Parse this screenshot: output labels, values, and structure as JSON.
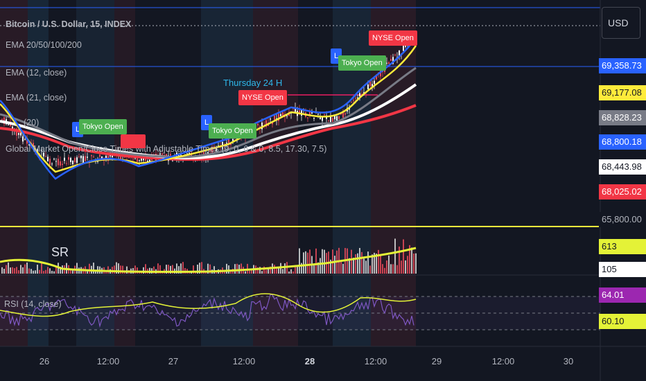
{
  "chart": {
    "symbol_title": "Bitcoin / U.S. Dollar, 15, INDEX",
    "currency": "USD",
    "indicators": [
      "EMA 20/50/100/200",
      "EMA (12, close)",
      "EMA (21, close)",
      "(20)",
      "Global Market Open/Close Times with Adjustable Times (9, 0, 6 & 0, 8.5, 17.30, 7.5)"
    ],
    "rsi_label": "RSI (14, close)",
    "sr_label": "SR",
    "day_annotation": "Thursday 24 H",
    "events": [
      {
        "label": "Tokyo Open",
        "color": "#4caf50"
      },
      {
        "label": "Tokyo Open",
        "color": "#4caf50"
      },
      {
        "label": "NYSE Open",
        "color": "#f23645"
      },
      {
        "label": "Tokyo Open",
        "color": "#4caf50"
      },
      {
        "label": "NYSE Open",
        "color": "#f23645"
      },
      {
        "label": "L",
        "color": "#2962ff"
      },
      {
        "label": "L",
        "color": "#2962ff"
      },
      {
        "label": "L",
        "color": "#2962ff"
      }
    ],
    "price_tags": [
      {
        "value": "69,358.73",
        "bg": "#2962ff",
        "fg": "#ffffff"
      },
      {
        "value": "69,177.08",
        "bg": "#ffeb3b",
        "fg": "#131722"
      },
      {
        "value": "68,828.23",
        "bg": "#787b86",
        "fg": "#ffffff"
      },
      {
        "value": "68,800.18",
        "bg": "#2962ff",
        "fg": "#ffffff"
      },
      {
        "value": "68,443.98",
        "bg": "#ffffff",
        "fg": "#131722"
      },
      {
        "value": "68,025.02",
        "bg": "#f23645",
        "fg": "#ffffff"
      },
      {
        "value": "65,800.00",
        "bg": "#131722",
        "fg": "#b2b5be"
      },
      {
        "value": "613",
        "bg": "#e4f237",
        "fg": "#131722"
      },
      {
        "value": "105",
        "bg": "#ffffff",
        "fg": "#131722"
      },
      {
        "value": "64.01",
        "bg": "#9c27b0",
        "fg": "#ffffff"
      },
      {
        "value": "60.10",
        "bg": "#e4f237",
        "fg": "#131722"
      }
    ],
    "x_ticks": [
      {
        "label": "26",
        "bold": false
      },
      {
        "label": "12:00",
        "bold": false
      },
      {
        "label": "27",
        "bold": false
      },
      {
        "label": "12:00",
        "bold": false
      },
      {
        "label": "28",
        "bold": true
      },
      {
        "label": "12:00",
        "bold": false
      },
      {
        "label": "29",
        "bold": false
      },
      {
        "label": "12:00",
        "bold": false
      },
      {
        "label": "30",
        "bold": false
      }
    ],
    "colors": {
      "background": "#131722",
      "ema_blue": "#2962ff",
      "ema_yellow": "#ffeb3b",
      "ema_gray": "#787b86",
      "ema_white": "#ffffff",
      "ema_red": "#f23645",
      "support_line": "#ffeb3b",
      "rsi_line": "#7e57c2",
      "rsi_ma": "#e4f237"
    }
  }
}
